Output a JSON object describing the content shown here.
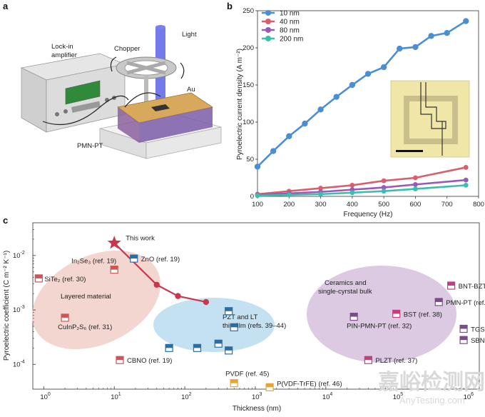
{
  "panels": {
    "a": "a",
    "b": "b",
    "c": "c"
  },
  "schematic": {
    "labels": {
      "light": "Light",
      "lockin_line1": "Lock-in",
      "lockin_line2": "amplifier",
      "chopper": "Chopper",
      "au": "Au",
      "pmnpt": "PMN-PT"
    },
    "colors": {
      "beam": "#5b63e8",
      "gold": "#d8a85c",
      "substrate": "#eeeeee",
      "lattice": "#7a5aa8"
    }
  },
  "watermark": {
    "line1": "嘉峪检测网",
    "line2": "AnyTesting.com"
  },
  "chart_data": [
    {
      "id": "b",
      "type": "line",
      "title": "",
      "xlabel": "Frequency (Hz)",
      "ylabel": "Pyroelectric current density (A m⁻²)",
      "xlim": [
        100,
        800
      ],
      "ylim": [
        0,
        250
      ],
      "xticks": [
        "100",
        "200",
        "300",
        "400",
        "500",
        "600",
        "700",
        "800"
      ],
      "yticks": [
        "0",
        "50",
        "100",
        "150",
        "200",
        "250"
      ],
      "legend_position": "top-left",
      "series": [
        {
          "name": "10 nm",
          "color": "#4a8fd4",
          "x": [
            100,
            150,
            200,
            250,
            300,
            350,
            400,
            450,
            500,
            550,
            600,
            650,
            700,
            760
          ],
          "y": [
            40,
            61,
            81,
            98,
            117,
            134,
            150,
            165,
            174,
            199,
            201,
            216,
            220,
            236
          ]
        },
        {
          "name": "40 nm",
          "color": "#d95f6e",
          "x": [
            100,
            200,
            300,
            400,
            500,
            600,
            760
          ],
          "y": [
            3,
            7,
            11,
            15,
            21,
            25,
            39
          ]
        },
        {
          "name": "80 nm",
          "color": "#9b59b6",
          "x": [
            100,
            200,
            300,
            400,
            500,
            600,
            760
          ],
          "y": [
            2,
            4,
            6,
            9,
            12,
            16,
            22
          ]
        },
        {
          "name": "200 nm",
          "color": "#3bbfad",
          "x": [
            100,
            200,
            300,
            400,
            500,
            600,
            760
          ],
          "y": [
            1,
            2,
            3,
            5,
            7,
            10,
            15
          ]
        }
      ],
      "inset": {
        "description_visible": false
      }
    },
    {
      "id": "c",
      "type": "scatter",
      "xlabel": "Thickness (nm)",
      "ylabel": "Pyroelectric coefficient (C m⁻² K⁻¹)",
      "xscale": "log",
      "yscale": "log",
      "xlim": [
        0.7,
        1500000
      ],
      "ylim": [
        3.5e-05,
        0.04
      ],
      "xticks": [
        {
          "base": "10",
          "exp": "0",
          "value": 1
        },
        {
          "base": "10",
          "exp": "1",
          "value": 10
        },
        {
          "base": "10",
          "exp": "2",
          "value": 100
        },
        {
          "base": "10",
          "exp": "3",
          "value": 1000
        },
        {
          "base": "10",
          "exp": "4",
          "value": 10000
        },
        {
          "base": "10",
          "exp": "5",
          "value": 100000
        },
        {
          "base": "10",
          "exp": "6",
          "value": 1000000
        }
      ],
      "yticks": [
        {
          "base": "10",
          "exp": "-4",
          "value": 0.0001
        },
        {
          "base": "10",
          "exp": "-3",
          "value": 0.001
        },
        {
          "base": "10",
          "exp": "-2",
          "value": 0.01
        }
      ],
      "this_work": {
        "label": "This work",
        "color": "#c9374f",
        "x": [
          10,
          40,
          80,
          200
        ],
        "y": [
          0.017,
          0.0029,
          0.0018,
          0.0014
        ]
      },
      "regions": [
        {
          "label_line1": "Layered material",
          "label_line2": "",
          "color": "#f2cfc8"
        },
        {
          "label_line1": "PZT and LT",
          "label_line2": "thin film (refs. 39–44)",
          "color": "#b9dcef"
        },
        {
          "label_line1": "Ceramics and",
          "label_line2": "single-cyrstal bulk",
          "color": "#d8c3df"
        }
      ],
      "points": [
        {
          "label": "ZnO (ref. 19)",
          "group": "blue",
          "x": 19,
          "y": 0.0088
        },
        {
          "label": "In₂Se₃ (ref. 19)",
          "group": "red",
          "x": 10,
          "y": 0.0055
        },
        {
          "label": "SiTe₂ (ref. 30)",
          "group": "red",
          "x": 0.85,
          "y": 0.0038
        },
        {
          "label": "CuInP₂S₆ (ref. 31)",
          "group": "red",
          "x": 2,
          "y": 0.00072
        },
        {
          "label": "CBNO (ref. 19)",
          "group": "red",
          "x": 12,
          "y": 0.00012
        },
        {
          "label": "",
          "group": "blue",
          "x": 60,
          "y": 0.0002
        },
        {
          "label": "",
          "group": "blue",
          "x": 150,
          "y": 0.0002
        },
        {
          "label": "",
          "group": "blue",
          "x": 300,
          "y": 0.00024
        },
        {
          "label": "",
          "group": "blue",
          "x": 420,
          "y": 0.00018
        },
        {
          "label": "",
          "group": "blue",
          "x": 420,
          "y": 0.00095
        },
        {
          "label": "",
          "group": "blue",
          "x": 500,
          "y": 0.00048
        },
        {
          "label": "BNT-BZT (ref. 36)",
          "group": "pink",
          "x": 600000,
          "y": 0.0028
        },
        {
          "label": "PMN-PT (ref. 28)",
          "group": "purple",
          "x": 400000,
          "y": 0.0014
        },
        {
          "label": "BST (ref. 38)",
          "group": "pink",
          "x": 100000,
          "y": 0.00085
        },
        {
          "label": "PIN-PMN-PT (ref. 32)",
          "group": "purple",
          "x": 25000,
          "y": 0.00075
        },
        {
          "label": "TGS (ref. 33)",
          "group": "purple",
          "x": 900000,
          "y": 0.00045
        },
        {
          "label": "SBN (ref. 35)",
          "group": "purple",
          "x": 900000,
          "y": 0.00028
        },
        {
          "label": "PLZT (ref. 37)",
          "group": "pink",
          "x": 40000,
          "y": 0.00012
        },
        {
          "label": "PVDF (ref. 45)",
          "group": "orange",
          "x": 500,
          "y": 4.5e-05
        },
        {
          "label": "P(VDF-TrFE) (ref. 46)",
          "group": "orange",
          "x": 1600,
          "y": 3.8e-05
        }
      ],
      "group_colors": {
        "blue": "#2e6da4",
        "red": "#cc5555",
        "pink": "#c2407d",
        "purple": "#7a4d88",
        "orange": "#e8a72a"
      }
    }
  ]
}
